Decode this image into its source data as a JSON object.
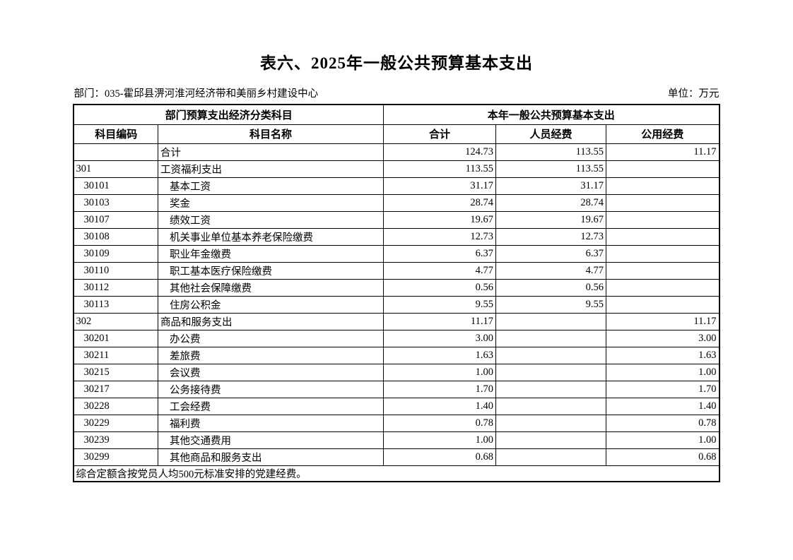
{
  "page": {
    "title": "表六、2025年一般公共预算基本支出",
    "department": "部门：035-霍邱县淠河淮河经济带和美丽乡村建设中心",
    "unit": "单位：万元"
  },
  "table": {
    "header_groups": [
      {
        "label": "部门预算支出经济分类科目",
        "colspan": 2
      },
      {
        "label": "本年一般公共预算基本支出",
        "colspan": 3
      }
    ],
    "columns": [
      "科目编码",
      "科目名称",
      "合计",
      "人员经费",
      "公用经费"
    ],
    "rows": [
      {
        "code": "",
        "name": "合计",
        "total": "124.73",
        "personnel": "113.55",
        "public": "11.17",
        "level": 0
      },
      {
        "code": "301",
        "name": "工资福利支出",
        "total": "113.55",
        "personnel": "113.55",
        "public": "",
        "level": 0
      },
      {
        "code": "30101",
        "name": "基本工资",
        "total": "31.17",
        "personnel": "31.17",
        "public": "",
        "level": 1
      },
      {
        "code": "30103",
        "name": "奖金",
        "total": "28.74",
        "personnel": "28.74",
        "public": "",
        "level": 1
      },
      {
        "code": "30107",
        "name": "绩效工资",
        "total": "19.67",
        "personnel": "19.67",
        "public": "",
        "level": 1
      },
      {
        "code": "30108",
        "name": "机关事业单位基本养老保险缴费",
        "total": "12.73",
        "personnel": "12.73",
        "public": "",
        "level": 1
      },
      {
        "code": "30109",
        "name": "职业年金缴费",
        "total": "6.37",
        "personnel": "6.37",
        "public": "",
        "level": 1
      },
      {
        "code": "30110",
        "name": "职工基本医疗保险缴费",
        "total": "4.77",
        "personnel": "4.77",
        "public": "",
        "level": 1
      },
      {
        "code": "30112",
        "name": "其他社会保障缴费",
        "total": "0.56",
        "personnel": "0.56",
        "public": "",
        "level": 1
      },
      {
        "code": "30113",
        "name": "住房公积金",
        "total": "9.55",
        "personnel": "9.55",
        "public": "",
        "level": 1
      },
      {
        "code": "302",
        "name": "商品和服务支出",
        "total": "11.17",
        "personnel": "",
        "public": "11.17",
        "level": 0
      },
      {
        "code": "30201",
        "name": "办公费",
        "total": "3.00",
        "personnel": "",
        "public": "3.00",
        "level": 1
      },
      {
        "code": "30211",
        "name": "差旅费",
        "total": "1.63",
        "personnel": "",
        "public": "1.63",
        "level": 1
      },
      {
        "code": "30215",
        "name": "会议费",
        "total": "1.00",
        "personnel": "",
        "public": "1.00",
        "level": 1
      },
      {
        "code": "30217",
        "name": "公务接待费",
        "total": "1.70",
        "personnel": "",
        "public": "1.70",
        "level": 1
      },
      {
        "code": "30228",
        "name": "工会经费",
        "total": "1.40",
        "personnel": "",
        "public": "1.40",
        "level": 1
      },
      {
        "code": "30229",
        "name": "福利费",
        "total": "0.78",
        "personnel": "",
        "public": "0.78",
        "level": 1
      },
      {
        "code": "30239",
        "name": "其他交通费用",
        "total": "1.00",
        "personnel": "",
        "public": "1.00",
        "level": 1
      },
      {
        "code": "30299",
        "name": "其他商品和服务支出",
        "total": "0.68",
        "personnel": "",
        "public": "0.68",
        "level": 1
      }
    ],
    "footnote": "综合定额含按党员人均500元标准安排的党建经费。"
  }
}
